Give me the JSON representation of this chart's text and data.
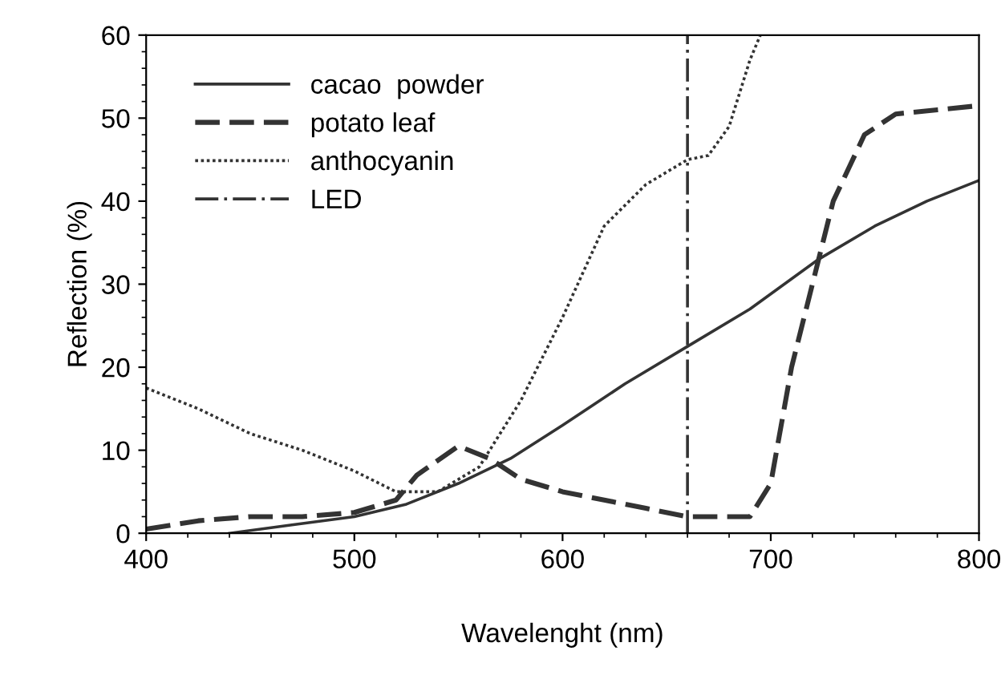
{
  "chart_data": {
    "type": "line",
    "xlabel": "Wavelenght (nm)",
    "ylabel": "Reflection (%)",
    "xlim": [
      400,
      800
    ],
    "ylim": [
      0,
      60
    ],
    "xticks": [
      400,
      500,
      600,
      700,
      800
    ],
    "yticks": [
      0,
      10,
      20,
      30,
      40,
      50,
      60
    ],
    "grid": false,
    "legend": "top left",
    "marker": "none",
    "series": [
      {
        "name": "cacao  powder",
        "color": "#333333",
        "line_style": "solid",
        "x": [
          440,
          470,
          500,
          525,
          550,
          575,
          600,
          630,
          660,
          690,
          723,
          750,
          775,
          800
        ],
        "values": [
          0,
          1,
          2,
          3.5,
          6,
          9,
          13,
          18,
          22.5,
          27,
          33,
          37,
          40,
          42.5
        ]
      },
      {
        "name": "potato leaf",
        "color": "#333333",
        "line_style": "dashed",
        "x": [
          400,
          425,
          450,
          475,
          500,
          520,
          530,
          550,
          565,
          580,
          600,
          620,
          640,
          660,
          675,
          690,
          700,
          710,
          720,
          730,
          745,
          760,
          780,
          800
        ],
        "values": [
          0.5,
          1.5,
          2,
          2,
          2.5,
          4,
          7,
          10.5,
          9,
          6.5,
          5,
          4,
          3,
          2,
          2,
          2,
          6,
          20,
          30,
          40,
          48,
          50.5,
          51,
          51.5
        ]
      },
      {
        "name": "anthocyanin",
        "color": "#333333",
        "line_style": "dotted",
        "x": [
          400,
          425,
          450,
          475,
          500,
          520,
          540,
          560,
          580,
          600,
          620,
          640,
          660,
          670,
          680,
          690,
          695
        ],
        "values": [
          17.5,
          15,
          12,
          10,
          7.5,
          5,
          5,
          8,
          16,
          26,
          37,
          42,
          45,
          45.5,
          49,
          57,
          60
        ]
      },
      {
        "name": "LED",
        "color": "#333333",
        "line_style": "dashdot",
        "x": [
          660,
          660
        ],
        "values": [
          0,
          60
        ]
      }
    ]
  }
}
